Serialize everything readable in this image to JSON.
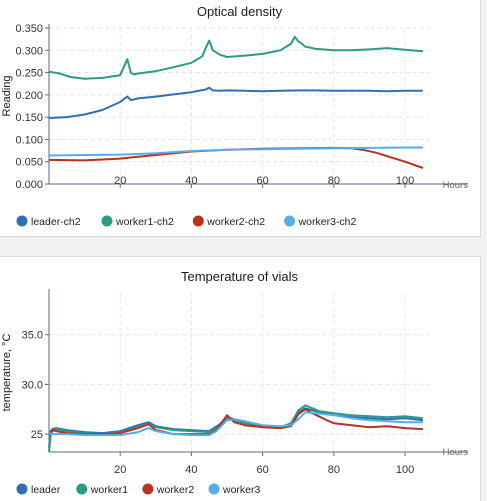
{
  "chart_data": [
    {
      "type": "line",
      "title": "Optical density",
      "ylabel": "Reading",
      "xunit": "Hours",
      "xlim": [
        0,
        107
      ],
      "ylim": [
        0,
        0.35
      ],
      "xticks": [
        20,
        40,
        60,
        80,
        100
      ],
      "xtick_labels": [
        "20",
        "40",
        "60",
        "80",
        "100"
      ],
      "yticks": [
        0,
        0.05,
        0.1,
        0.15,
        0.2,
        0.25,
        0.3,
        0.35
      ],
      "ytick_labels": [
        "0.000",
        "0.050",
        "0.100",
        "0.150",
        "0.200",
        "0.250",
        "0.300",
        "0.350"
      ],
      "grid": true,
      "legend": "bottom",
      "series": [
        {
          "name": "leader-ch2",
          "color": "#2f6fb3",
          "x": [
            0,
            5,
            10,
            15,
            20,
            22,
            23,
            25,
            30,
            35,
            40,
            44,
            45,
            46,
            48,
            50,
            55,
            60,
            65,
            70,
            75,
            80,
            85,
            90,
            95,
            100,
            105
          ],
          "y": [
            0.148,
            0.15,
            0.156,
            0.166,
            0.184,
            0.196,
            0.188,
            0.192,
            0.196,
            0.201,
            0.206,
            0.212,
            0.216,
            0.21,
            0.209,
            0.21,
            0.209,
            0.208,
            0.209,
            0.21,
            0.21,
            0.209,
            0.209,
            0.209,
            0.208,
            0.209,
            0.209
          ]
        },
        {
          "name": "worker1-ch2",
          "color": "#2e9a86",
          "x": [
            0,
            3,
            6,
            10,
            15,
            20,
            21,
            22,
            23,
            24,
            25,
            30,
            35,
            40,
            43,
            44,
            45,
            46,
            48,
            50,
            55,
            60,
            65,
            68,
            69,
            70,
            71,
            72,
            75,
            80,
            85,
            90,
            95,
            100,
            105
          ],
          "y": [
            0.252,
            0.248,
            0.24,
            0.236,
            0.238,
            0.244,
            0.262,
            0.28,
            0.249,
            0.246,
            0.248,
            0.253,
            0.262,
            0.272,
            0.286,
            0.305,
            0.322,
            0.3,
            0.29,
            0.285,
            0.288,
            0.292,
            0.3,
            0.315,
            0.33,
            0.32,
            0.315,
            0.308,
            0.303,
            0.3,
            0.3,
            0.302,
            0.305,
            0.301,
            0.298
          ]
        },
        {
          "name": "worker2-ch2",
          "color": "#b5331f",
          "x": [
            0,
            10,
            20,
            30,
            40,
            50,
            60,
            70,
            80,
            85,
            88,
            92,
            96,
            100,
            105
          ],
          "y": [
            0.054,
            0.053,
            0.057,
            0.065,
            0.073,
            0.077,
            0.079,
            0.08,
            0.081,
            0.08,
            0.077,
            0.07,
            0.06,
            0.05,
            0.036
          ]
        },
        {
          "name": "worker3-ch2",
          "color": "#55aee6",
          "x": [
            0,
            10,
            20,
            30,
            40,
            50,
            60,
            70,
            80,
            90,
            100,
            105
          ],
          "y": [
            0.064,
            0.065,
            0.066,
            0.069,
            0.074,
            0.077,
            0.078,
            0.079,
            0.08,
            0.081,
            0.082,
            0.082
          ]
        }
      ]
    },
    {
      "type": "line",
      "title": "Temperature of vials",
      "ylabel": "temperature, °C",
      "xunit": "Hours",
      "xlim": [
        0,
        107
      ],
      "ylim": [
        23.2,
        39.2
      ],
      "xticks": [
        20,
        40,
        60,
        80,
        100
      ],
      "xtick_labels": [
        "20",
        "40",
        "60",
        "80",
        "100"
      ],
      "yticks": [
        25,
        30,
        35
      ],
      "ytick_labels": [
        "25",
        "30.0",
        "35.0"
      ],
      "grid": true,
      "legend": "bottom",
      "series": [
        {
          "name": "leader",
          "color": "#2f6fb3",
          "x": [
            0,
            0.5,
            1,
            2,
            5,
            10,
            15,
            20,
            25,
            28,
            30,
            35,
            40,
            45,
            48,
            50,
            52,
            55,
            60,
            65,
            68,
            70,
            72,
            75,
            80,
            85,
            90,
            95,
            100,
            105
          ],
          "y": [
            23.6,
            25.3,
            25.5,
            25.6,
            25.4,
            25.2,
            25.1,
            25.3,
            25.9,
            26.2,
            25.8,
            25.5,
            25.4,
            25.3,
            26.0,
            26.7,
            26.5,
            26.2,
            25.8,
            25.6,
            26.0,
            27.2,
            27.6,
            27.3,
            26.9,
            26.7,
            26.6,
            26.5,
            26.6,
            26.4
          ]
        },
        {
          "name": "worker1",
          "color": "#2e9a86",
          "x": [
            0,
            0.5,
            1,
            2,
            5,
            10,
            15,
            20,
            25,
            28,
            30,
            35,
            40,
            45,
            48,
            50,
            52,
            55,
            60,
            65,
            68,
            70,
            72,
            74,
            76,
            80,
            85,
            90,
            95,
            100,
            105
          ],
          "y": [
            23.2,
            25.0,
            25.3,
            25.5,
            25.3,
            25.1,
            25.0,
            25.2,
            25.7,
            26.0,
            25.7,
            25.4,
            25.3,
            25.2,
            25.8,
            26.6,
            26.4,
            26.1,
            25.8,
            25.7,
            26.1,
            27.4,
            27.9,
            27.6,
            27.3,
            27.1,
            26.9,
            26.8,
            26.7,
            26.8,
            26.6
          ]
        },
        {
          "name": "worker2",
          "color": "#b5331f",
          "x": [
            0,
            1,
            2,
            5,
            10,
            15,
            20,
            25,
            28,
            30,
            35,
            40,
            45,
            47,
            50,
            52,
            55,
            60,
            65,
            68,
            70,
            72,
            74,
            78,
            80,
            85,
            90,
            95,
            100,
            105
          ],
          "y": [
            25.0,
            25.4,
            25.3,
            25.1,
            25.0,
            25.0,
            25.1,
            25.6,
            26.0,
            25.4,
            25.0,
            25.0,
            25.0,
            25.4,
            26.9,
            26.2,
            25.9,
            25.7,
            25.6,
            25.8,
            27.0,
            27.5,
            27.1,
            26.4,
            26.1,
            25.9,
            25.7,
            25.8,
            25.6,
            25.5
          ]
        },
        {
          "name": "worker3",
          "color": "#55aee6",
          "x": [
            0,
            1,
            2,
            5,
            10,
            15,
            20,
            25,
            28,
            30,
            35,
            40,
            45,
            47,
            50,
            52,
            55,
            60,
            65,
            68,
            70,
            72,
            75,
            80,
            85,
            90,
            95,
            100,
            105
          ],
          "y": [
            25.1,
            25.0,
            25.0,
            25.0,
            24.9,
            24.9,
            24.9,
            25.2,
            25.6,
            25.3,
            25.0,
            24.9,
            24.9,
            25.3,
            26.4,
            26.5,
            26.3,
            25.9,
            25.8,
            25.9,
            26.5,
            27.2,
            27.1,
            26.9,
            26.6,
            26.4,
            26.3,
            26.2,
            26.2
          ]
        }
      ]
    }
  ],
  "colors": {
    "grid": "#e4e4e8",
    "axis": "#5a6a88",
    "card_bg": "#ffffff",
    "page_bg": "#f2f2f4"
  }
}
